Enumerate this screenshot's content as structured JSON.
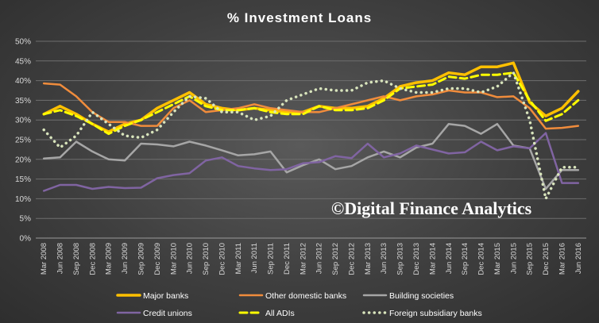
{
  "chart_data": {
    "type": "line",
    "title": "% Investment Loans",
    "ylim": [
      0,
      50
    ],
    "yticks": [
      "0%",
      "5%",
      "10%",
      "15%",
      "20%",
      "25%",
      "30%",
      "35%",
      "40%",
      "45%",
      "50%"
    ],
    "grid": true,
    "legend_position": "bottom",
    "watermark": "©Digital Finance Analytics",
    "categories": [
      "Mar 2008",
      "Jun 2008",
      "Sep 2008",
      "Dec 2008",
      "Mar 2009",
      "Jun 2009",
      "Sep 2009",
      "Dec 2009",
      "Mar 2010",
      "Jun 2010",
      "Sep 2010",
      "Dec 2010",
      "Mar 2011",
      "Jun 2011",
      "Sep 2011",
      "Dec 2011",
      "Mar 2012",
      "Jun 2012",
      "Sep 2012",
      "Dec 2012",
      "Mar 2013",
      "Jun 2013",
      "Sep 2013",
      "Dec 2013",
      "Mar 2014",
      "Jun 2014",
      "Sep 2014",
      "Dec 2014",
      "Mar 2015",
      "Jun 2015",
      "Sep 2015",
      "Dec 2015",
      "Mar 2016",
      "Jun 2016"
    ],
    "series": [
      {
        "name": "Major banks",
        "color": "#ffc000",
        "style": "solid",
        "width": 3.5,
        "values": [
          31.5,
          33.5,
          31.5,
          29,
          27,
          29,
          30,
          33,
          35,
          37,
          34,
          33,
          32.5,
          33,
          32.5,
          32,
          32,
          33.5,
          33,
          33,
          33.5,
          35.5,
          38.5,
          39.5,
          40,
          42,
          41.5,
          43.5,
          43.5,
          44.5,
          34.5,
          31,
          33,
          37.3
        ]
      },
      {
        "name": "Other domestic banks",
        "color": "#f08c3c",
        "style": "solid",
        "width": 2.5,
        "values": [
          39.3,
          39,
          36,
          32,
          29.5,
          29.5,
          28.5,
          28.5,
          33,
          35,
          32,
          32.5,
          33,
          34,
          33,
          32.5,
          32,
          32,
          33,
          34,
          35,
          36,
          35,
          36,
          36.5,
          37.5,
          37,
          37,
          35.8,
          36,
          33,
          27.8,
          28,
          28.5
        ]
      },
      {
        "name": "Building societies",
        "color": "#a6a6a6",
        "style": "solid",
        "width": 2.5,
        "values": [
          20.2,
          20.5,
          24.5,
          22,
          20,
          19.7,
          24,
          23.8,
          23.3,
          24.5,
          23.5,
          22.3,
          21,
          21.3,
          22,
          16.7,
          18.5,
          20,
          17.5,
          18.3,
          20.5,
          22,
          20.5,
          23,
          24,
          29,
          28.5,
          26.5,
          29,
          23.5,
          22.8,
          12.5,
          17.3,
          17.3
        ]
      },
      {
        "name": "Credit unions",
        "color": "#8064a2",
        "style": "solid",
        "width": 2.5,
        "values": [
          12,
          13.5,
          13.5,
          12.5,
          13,
          12.7,
          12.8,
          15.2,
          16,
          16.5,
          19.7,
          20.5,
          18.3,
          17.7,
          17.3,
          17.5,
          19,
          19.3,
          20.8,
          20.3,
          24,
          20.5,
          21.5,
          23.5,
          22.5,
          21.5,
          21.8,
          24.5,
          22.3,
          23.3,
          22.8,
          26.7,
          14,
          14
        ]
      },
      {
        "name": "All ADIs",
        "color": "#ffff00",
        "style": "dashed",
        "width": 3,
        "values": [
          31.5,
          32.5,
          31,
          29,
          26.5,
          28.5,
          30,
          32,
          34,
          36,
          33.5,
          32.5,
          32.5,
          33,
          32,
          31.5,
          31.5,
          33.5,
          32.5,
          32.5,
          33,
          35,
          38,
          38.5,
          39,
          41,
          40.5,
          41.5,
          41.5,
          42,
          35,
          29.8,
          31.5,
          35
        ]
      },
      {
        "name": "Foreign subsidiary banks",
        "color": "#d8e4bc",
        "style": "dotted",
        "width": 3.5,
        "values": [
          27.5,
          23,
          26,
          32,
          29,
          26,
          25.5,
          27.5,
          32,
          36,
          35.5,
          32,
          32,
          30,
          31,
          35,
          36.5,
          38,
          37.5,
          37.5,
          39.5,
          40,
          38,
          37,
          37,
          38,
          38,
          37,
          38.5,
          42,
          30,
          10,
          18,
          18
        ]
      }
    ]
  }
}
